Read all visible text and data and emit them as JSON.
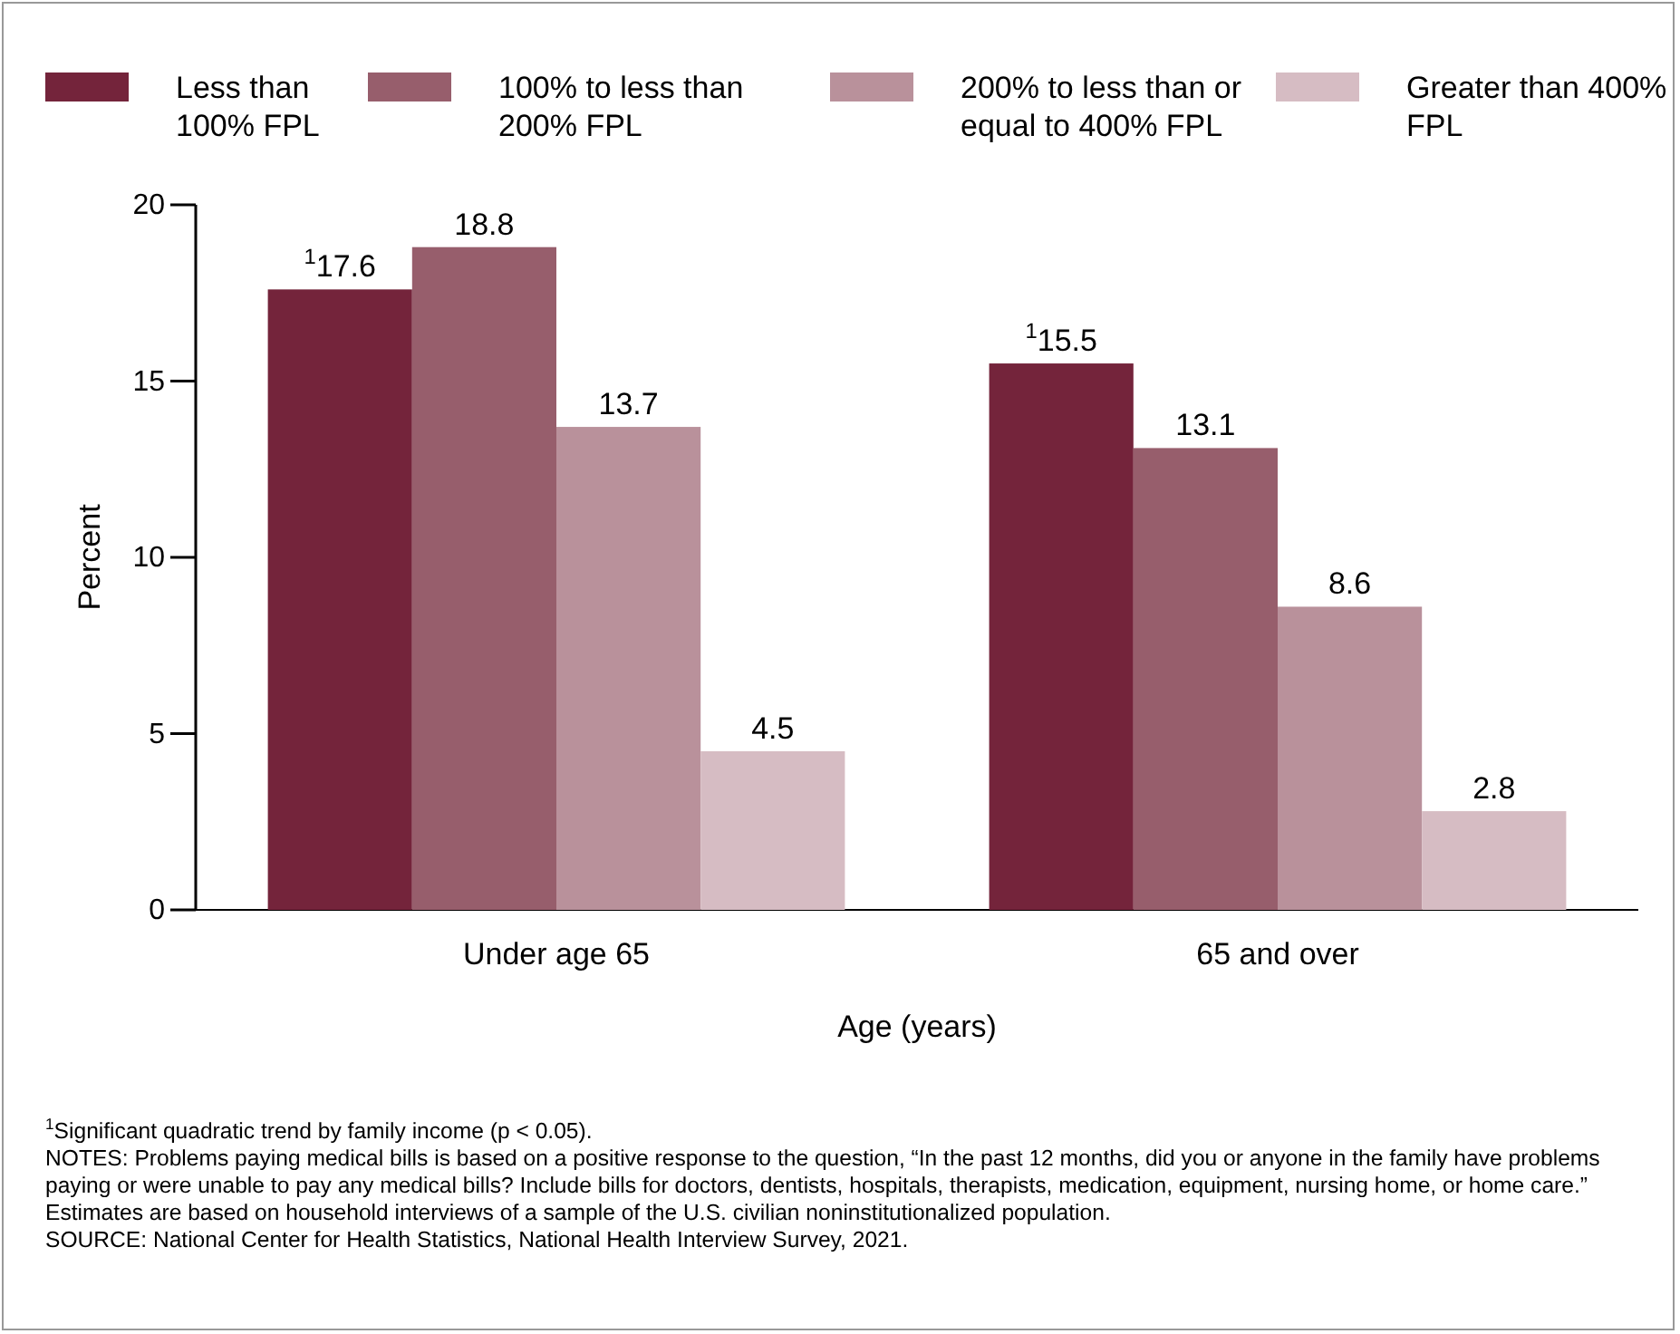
{
  "chart_data": {
    "type": "bar",
    "categories": [
      "Under age 65",
      "65 and over"
    ],
    "series": [
      {
        "name": "Less than 100% FPL",
        "color": "#74243b",
        "values": [
          17.6,
          15.5
        ],
        "value_labels": [
          "$^{1}$17.6",
          "$^{1}$15.5"
        ]
      },
      {
        "name": "100% to less than 200% FPL",
        "color": "#975e6c",
        "values": [
          18.8,
          13.1
        ],
        "value_labels": [
          "18.8",
          "13.1"
        ]
      },
      {
        "name": "200% to less than or equal to 400% FPL",
        "color": "#b9919b",
        "values": [
          13.7,
          8.6
        ],
        "value_labels": [
          "13.7",
          "8.6"
        ]
      },
      {
        "name": "Greater than 400% FPL",
        "color": "#d6bcc3",
        "values": [
          4.5,
          2.8
        ],
        "value_labels": [
          "4.5",
          "2.8"
        ]
      }
    ],
    "xlabel": "Age (years)",
    "ylabel": "Percent",
    "ylim": [
      0,
      20
    ],
    "yticks": [
      0,
      5,
      10,
      15,
      20
    ],
    "grid": false,
    "legend": "top",
    "annotations": [
      "$^{1}$Significant quadratic trend by family income (p < 0.05).",
      "NOTES: Problems paying medical bills is based on a positive response to the question, “In the past 12 months, did you or anyone in the family have problems paying or were unable to pay any medical bills? Include bills for doctors, dentists, hospitals, therapists, medication, equipment, nursing home, or home care.” Estimates are based on household interviews of a sample of the U.S. civilian noninstitutionalized population.",
      "SOURCE: National Center for Health Statistics, National Health Interview Survey, 2021."
    ]
  }
}
